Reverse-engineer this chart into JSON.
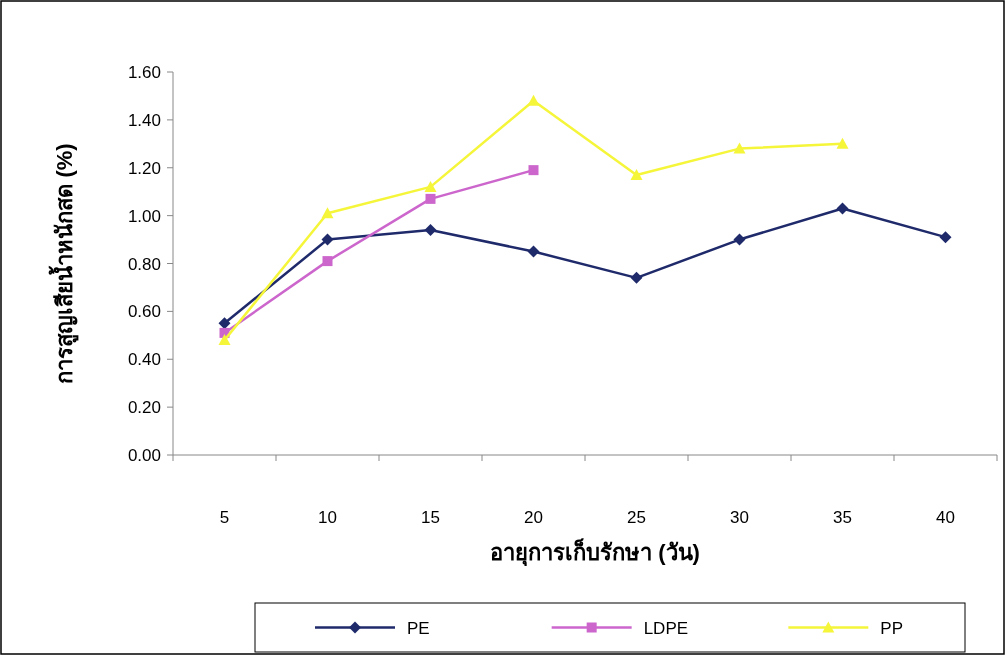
{
  "chart_data": {
    "type": "line",
    "xlabel": "อายุการเก็บรักษา (วัน)",
    "ylabel": "การสูญเสียน้ำหนักสด (%)",
    "categories": [
      "5",
      "10",
      "15",
      "20",
      "25",
      "30",
      "35",
      "40"
    ],
    "series": [
      {
        "name": "PE",
        "color": "#1f2a6b",
        "marker": "diamond",
        "values": [
          0.55,
          0.9,
          0.94,
          0.85,
          0.74,
          0.9,
          1.03,
          0.91
        ]
      },
      {
        "name": "LDPE",
        "color": "#cc66cc",
        "marker": "square",
        "values": [
          0.51,
          0.81,
          1.07,
          1.19,
          null,
          null,
          null,
          null
        ]
      },
      {
        "name": "PP",
        "color": "#f5f53a",
        "marker": "triangle",
        "values": [
          0.48,
          1.01,
          1.12,
          1.48,
          1.17,
          1.28,
          1.3,
          null
        ]
      }
    ],
    "ylim": [
      0,
      1.6
    ],
    "yticks": [
      {
        "value": 0,
        "label": "0.00"
      },
      {
        "value": 0.2,
        "label": "0.20"
      },
      {
        "value": 0.4,
        "label": "0.40"
      },
      {
        "value": 0.6,
        "label": "0.60"
      },
      {
        "value": 0.8,
        "label": "0.80"
      },
      {
        "value": 1.0,
        "label": "1.00"
      },
      {
        "value": 1.2,
        "label": "1.20"
      },
      {
        "value": 1.4,
        "label": "1.40"
      },
      {
        "value": 1.6,
        "label": "1.60"
      }
    ],
    "grid": false,
    "legend": "bottom"
  }
}
